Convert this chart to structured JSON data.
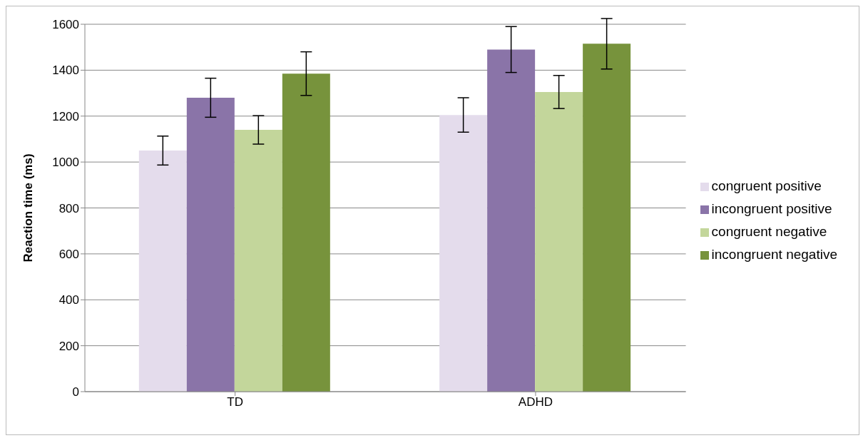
{
  "chart_data": {
    "type": "bar",
    "ylabel": "Reaction time (ms)",
    "categories": [
      "TD",
      "ADHD"
    ],
    "series": [
      {
        "name": "congruent positive",
        "color": "#e4dcec",
        "values": [
          1050,
          1205
        ],
        "errors": [
          63,
          75
        ]
      },
      {
        "name": "incongruent positive",
        "color": "#8a74a8",
        "values": [
          1280,
          1490
        ],
        "errors": [
          85,
          100
        ]
      },
      {
        "name": "congruent negative",
        "color": "#c3d69b",
        "values": [
          1140,
          1305
        ],
        "errors": [
          62,
          72
        ]
      },
      {
        "name": "incongruent negative",
        "color": "#77933c",
        "values": [
          1385,
          1515
        ],
        "errors": [
          95,
          110
        ]
      }
    ],
    "ylim": [
      0,
      1600
    ],
    "yticks": [
      0,
      200,
      400,
      600,
      800,
      1000,
      1200,
      1400,
      1600
    ],
    "grid": "y",
    "legend": "right"
  }
}
